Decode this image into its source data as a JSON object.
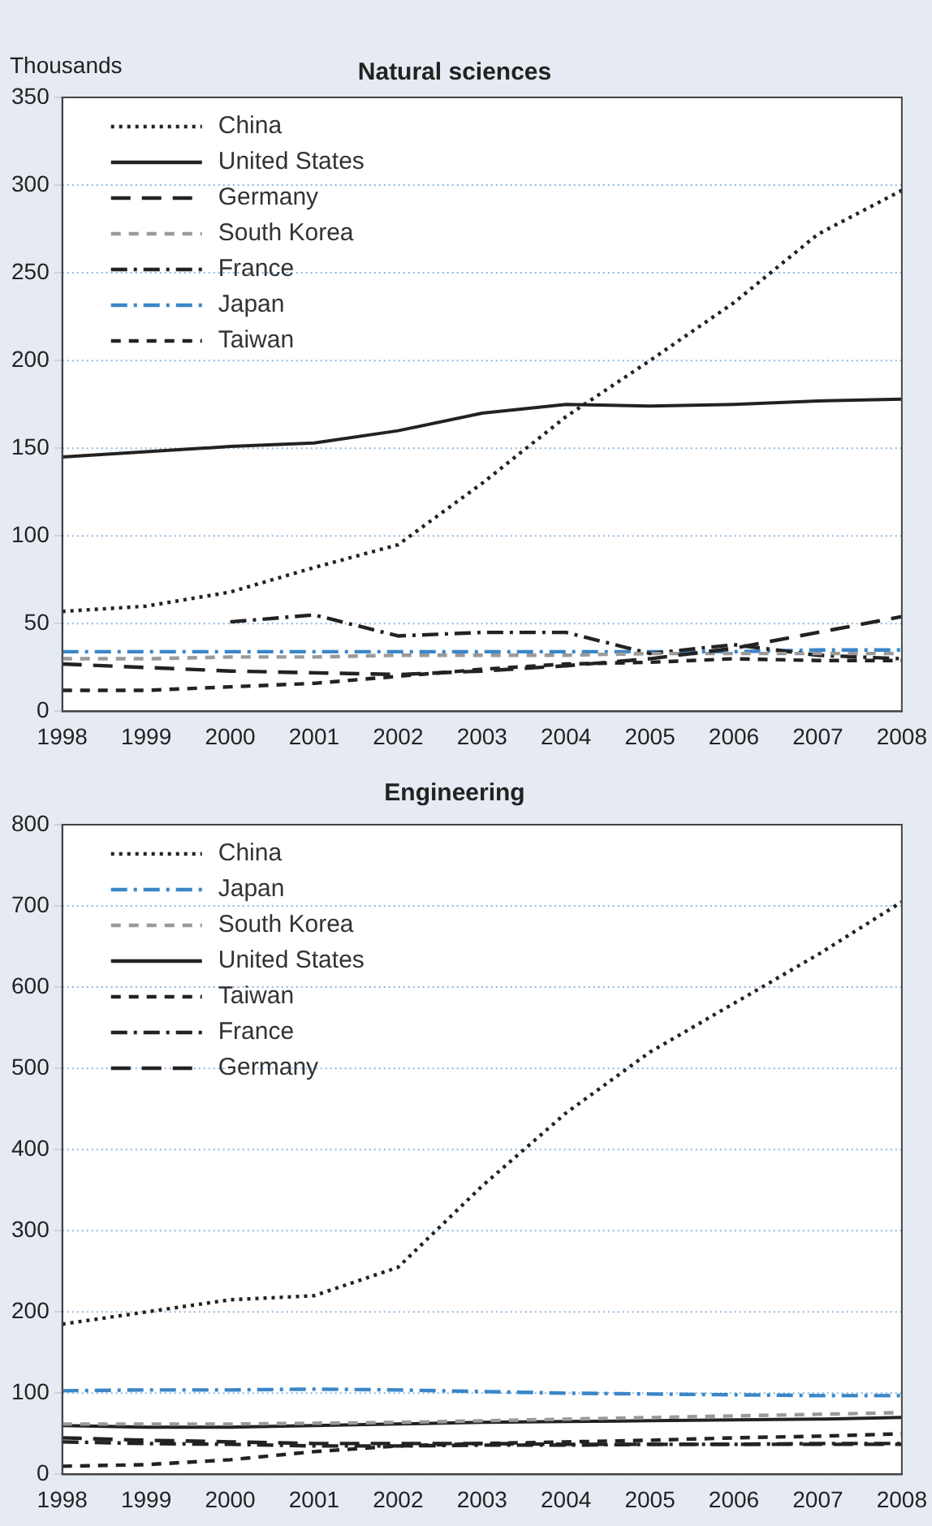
{
  "chart_data": [
    {
      "type": "line",
      "title": "Natural sciences",
      "ylabel": "Thousands",
      "categories": [
        "1998",
        "1999",
        "2000",
        "2001",
        "2002",
        "2003",
        "2004",
        "2005",
        "2006",
        "2007",
        "2008"
      ],
      "series": [
        {
          "name": "China",
          "color": "#222222",
          "line_style": "dotted",
          "values": [
            57,
            60,
            68,
            82,
            95,
            130,
            168,
            200,
            233,
            272,
            297
          ]
        },
        {
          "name": "United States",
          "color": "#222222",
          "line_style": "solid",
          "values": [
            145,
            148,
            151,
            153,
            160,
            170,
            175,
            174,
            175,
            177,
            178
          ]
        },
        {
          "name": "Germany",
          "color": "#222222",
          "line_style": "longdash",
          "values": [
            27,
            25,
            23,
            22,
            21,
            23,
            26,
            30,
            36,
            45,
            54
          ]
        },
        {
          "name": "South Korea",
          "color": "#9a9a9a",
          "line_style": "dashed",
          "values": [
            30,
            30,
            31,
            31,
            32,
            32,
            32,
            33,
            33,
            33,
            33
          ]
        },
        {
          "name": "France",
          "color": "#222222",
          "line_style": "dashdot",
          "values": [
            null,
            null,
            51,
            55,
            43,
            45,
            45,
            33,
            38,
            32,
            30
          ]
        },
        {
          "name": "Japan",
          "color": "#3a86c8",
          "line_style": "dashdot",
          "values": [
            34,
            34,
            34,
            34,
            34,
            34,
            34,
            34,
            34,
            35,
            35
          ]
        },
        {
          "name": "Taiwan",
          "color": "#222222",
          "line_style": "dashed",
          "values": [
            12,
            12,
            14,
            16,
            20,
            24,
            27,
            28,
            30,
            29,
            29
          ]
        }
      ],
      "ylim": [
        0,
        350
      ],
      "yticks": [
        0,
        50,
        100,
        150,
        200,
        250,
        300,
        350
      ],
      "grid": "y",
      "legend": "top left"
    },
    {
      "type": "line",
      "title": "Engineering",
      "categories": [
        "1998",
        "1999",
        "2000",
        "2001",
        "2002",
        "2003",
        "2004",
        "2005",
        "2006",
        "2007",
        "2008"
      ],
      "series": [
        {
          "name": "China",
          "color": "#222222",
          "line_style": "dotted",
          "values": [
            185,
            200,
            215,
            220,
            255,
            355,
            445,
            520,
            580,
            640,
            705
          ]
        },
        {
          "name": "Japan",
          "color": "#3a86c8",
          "line_style": "dashdot",
          "values": [
            103,
            104,
            104,
            105,
            104,
            102,
            100,
            99,
            98,
            97,
            97
          ]
        },
        {
          "name": "South Korea",
          "color": "#9a9a9a",
          "line_style": "dashed",
          "values": [
            62,
            62,
            62,
            63,
            64,
            66,
            68,
            70,
            72,
            74,
            76
          ]
        },
        {
          "name": "United States",
          "color": "#222222",
          "line_style": "solid",
          "values": [
            60,
            58,
            58,
            60,
            62,
            64,
            65,
            66,
            67,
            68,
            70
          ]
        },
        {
          "name": "Taiwan",
          "color": "#222222",
          "line_style": "dashed",
          "values": [
            10,
            12,
            18,
            28,
            35,
            38,
            40,
            42,
            45,
            47,
            50
          ]
        },
        {
          "name": "France",
          "color": "#222222",
          "line_style": "dashdot",
          "values": [
            40,
            38,
            37,
            35,
            35,
            36,
            36,
            37,
            37,
            38,
            38
          ]
        },
        {
          "name": "Germany",
          "color": "#222222",
          "line_style": "longdash",
          "values": [
            45,
            42,
            40,
            38,
            38,
            38,
            37,
            37,
            37,
            37,
            37
          ]
        }
      ],
      "ylim": [
        0,
        800
      ],
      "yticks": [
        0,
        100,
        200,
        300,
        400,
        500,
        600,
        700,
        800
      ],
      "grid": "y",
      "legend": "top left"
    }
  ]
}
